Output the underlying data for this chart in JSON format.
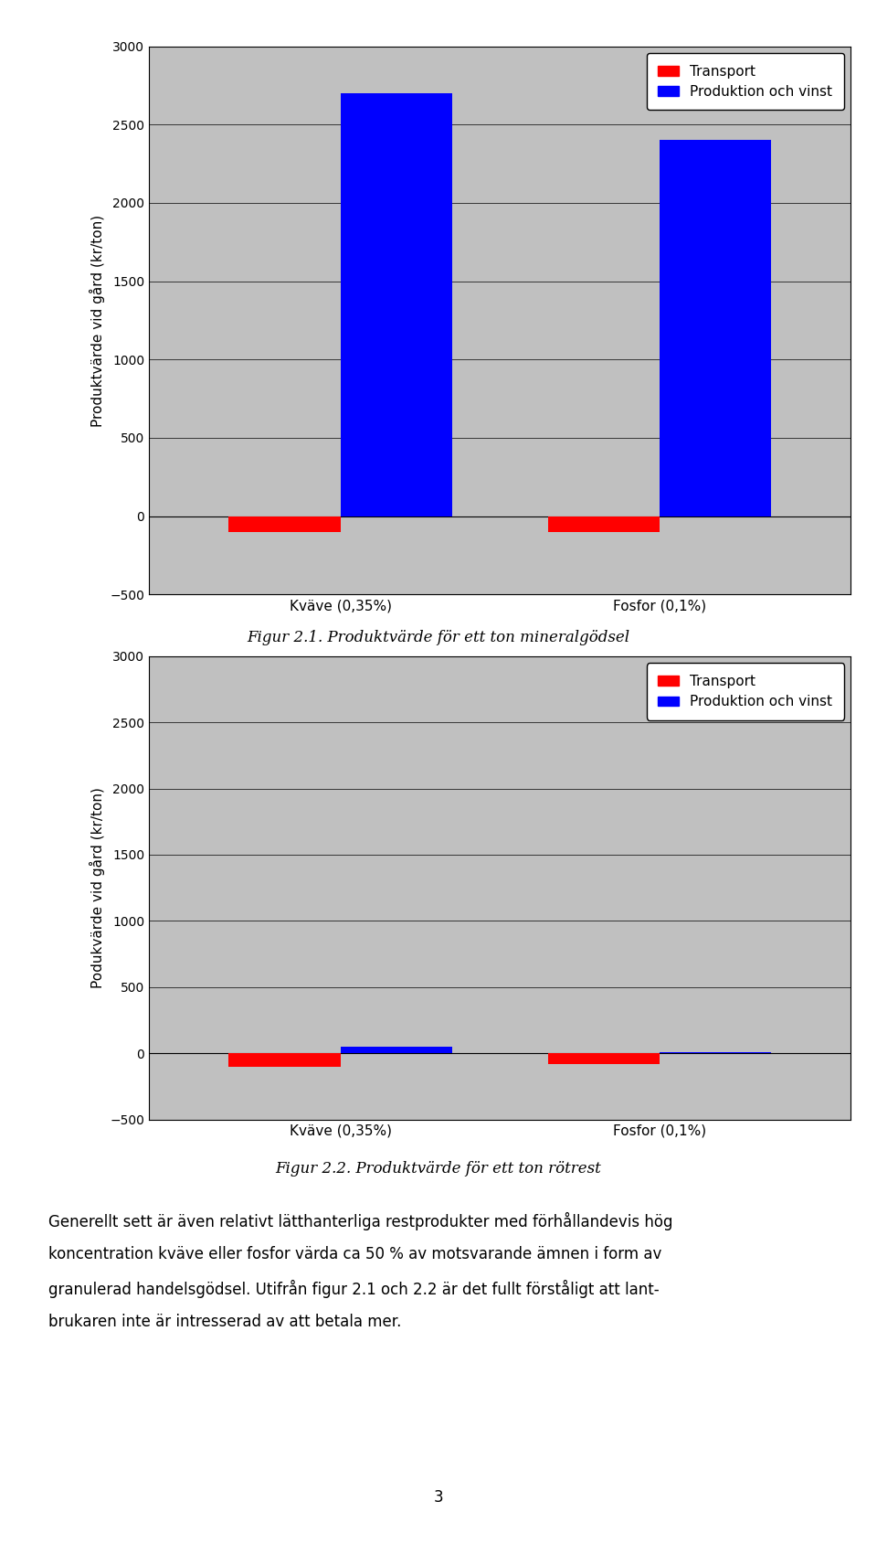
{
  "chart1": {
    "categories": [
      "Kväve (0,35%)",
      "Fosfor (0,1%)"
    ],
    "transport": [
      -100,
      -100
    ],
    "produktion": [
      2700,
      2400
    ],
    "ylabel": "Produktvärde vid gård (kr/ton)",
    "ylim": [
      -500,
      3000
    ],
    "yticks": [
      -500,
      0,
      500,
      1000,
      1500,
      2000,
      2500,
      3000
    ],
    "caption": "Figur 2.1. Produktvärde för ett ton mineralgödsel"
  },
  "chart2": {
    "categories": [
      "Kväve (0,35%)",
      "Fosfor (0,1%)"
    ],
    "transport": [
      -100,
      -80
    ],
    "produktion": [
      50,
      10
    ],
    "ylabel": "Podukvärde vid gård (kr/ton)",
    "ylim": [
      -500,
      3000
    ],
    "yticks": [
      -500,
      0,
      500,
      1000,
      1500,
      2000,
      2500,
      3000
    ],
    "caption": "Figur 2.2. Produktvärde för ett ton rötrest"
  },
  "legend_transport": "Transport",
  "legend_produktion": "Produktion och vinst",
  "color_transport": "#FF0000",
  "color_produktion": "#0000FF",
  "bg_color": "#C0C0C0",
  "bar_width": 0.35,
  "paragraph_lines": [
    "Generellt sett är även relativt lätthanterliga restprodukter med förhållandevis hög",
    "koncentration kväve eller fosfor värda ca 50 % av motsvarande ämnen i form av",
    "granulerad handelsgödsel. Utifrån figur 2.1 och 2.2 är det fullt förståligt att lant-",
    "brukaren inte är intresserad av att betala mer."
  ],
  "page_number": "3"
}
